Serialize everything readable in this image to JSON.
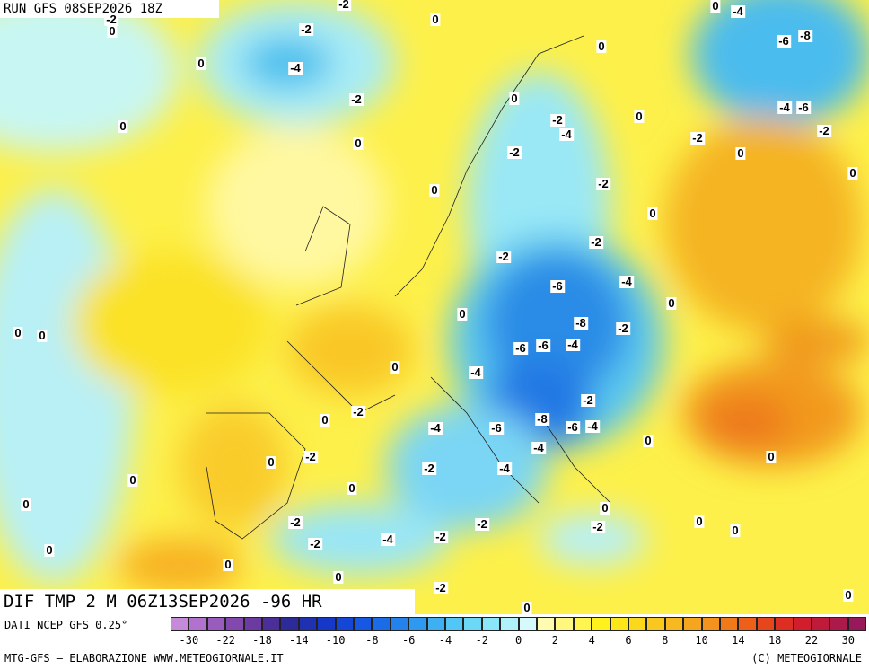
{
  "header": {
    "run": "RUN GFS 08SEP2026 18Z"
  },
  "map": {
    "contour_labels": [
      -2,
      -2,
      0,
      0,
      0,
      -4,
      -2,
      -6,
      -8,
      0,
      -4,
      0,
      -2,
      0,
      -2,
      -4,
      0,
      -4,
      -6,
      0,
      -2,
      0,
      -2,
      0,
      -2,
      0,
      0,
      -2,
      0,
      -2,
      -2,
      -4,
      -6,
      0,
      0,
      -8,
      -2,
      0,
      0,
      -6,
      -6,
      -4,
      0,
      -4,
      -2,
      -2,
      0,
      -8,
      -6,
      -6,
      -4,
      -4,
      0,
      -4,
      0,
      -2,
      0,
      -2,
      -4,
      0,
      0,
      0,
      0,
      -2,
      -2,
      -2,
      0,
      0,
      -2,
      -4,
      -2,
      0,
      0,
      0,
      -2,
      0,
      0
    ]
  },
  "footer": {
    "title": "DIF TMP 2 M 06Z13SEP2026 -96 HR",
    "source": "DATI NCEP GFS 0.25°",
    "credit": "MTG-GFS – ELABORAZIONE WWW.METEOGIORNALE.IT",
    "copyright": "(C) METEOGIORNALE"
  },
  "colorbar": {
    "labels": [
      -30,
      -22,
      -18,
      -14,
      -10,
      -8,
      -6,
      -4,
      -2,
      0,
      2,
      4,
      6,
      8,
      10,
      14,
      18,
      22,
      30
    ],
    "colors": [
      "#c58ad8",
      "#b072cc",
      "#9a5cbc",
      "#8348ad",
      "#6b3ba1",
      "#4c2e98",
      "#2d2a9a",
      "#1f30b0",
      "#1638c8",
      "#1446d8",
      "#1658e2",
      "#1c6ce8",
      "#2482ec",
      "#2f98ef",
      "#3eb0f2",
      "#52c6f4",
      "#6cd8f6",
      "#8ae6f8",
      "#b0f2fa",
      "#d6fafc",
      "#fffbb0",
      "#fff880",
      "#fff550",
      "#fff21c",
      "#fde61a",
      "#fbd81c",
      "#f9c820",
      "#f7b820",
      "#f5a61e",
      "#f3921c",
      "#f07a1a",
      "#ec601a",
      "#e6461c",
      "#de2e22",
      "#d01e2c",
      "#c01a3a",
      "#ac1a4c",
      "#98185c"
    ]
  }
}
